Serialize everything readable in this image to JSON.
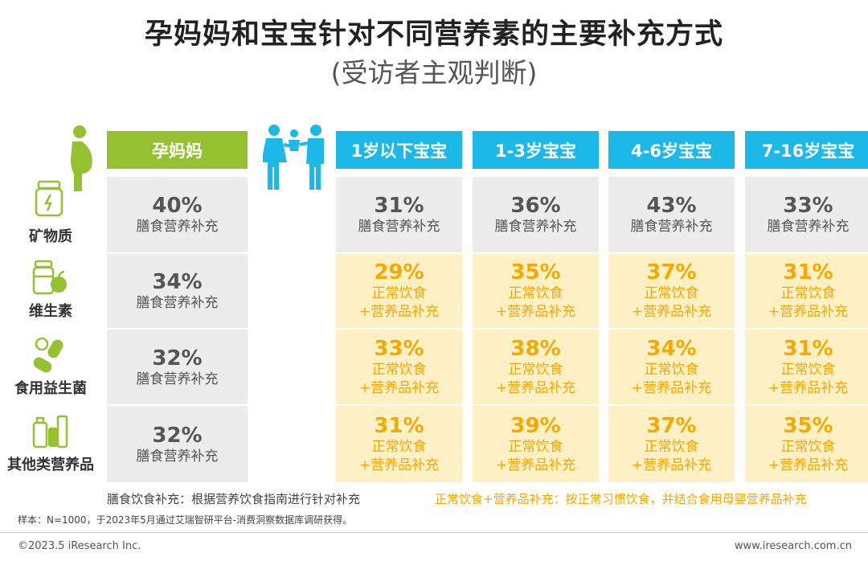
{
  "title": "孕妈妈和宝宝针对不同营养素的主要补充方式",
  "subtitle": "(受访者主观判断)",
  "chart_data": {
    "type": "table",
    "columns": [
      "孕妈妈",
      "1岁以下宝宝",
      "1-3岁宝宝",
      "4-6岁宝宝",
      "7-16岁宝宝"
    ],
    "rows": [
      {
        "label": "矿物质",
        "icon": "supplement-jar-icon",
        "cells": [
          {
            "value": "40%",
            "method": "膳食营养补充"
          },
          {
            "value": "31%",
            "method": "膳食营养补充"
          },
          {
            "value": "36%",
            "method": "膳食营养补充"
          },
          {
            "value": "43%",
            "method": "膳食营养补充"
          },
          {
            "value": "33%",
            "method": "膳食营养补充"
          }
        ]
      },
      {
        "label": "维生素",
        "icon": "vitamin-fruit-icon",
        "cells": [
          {
            "value": "34%",
            "method": "膳食营养补充"
          },
          {
            "value": "29%",
            "method": "正常饮食",
            "method2": "+营养品补充"
          },
          {
            "value": "35%",
            "method": "正常饮食",
            "method2": "+营养品补充"
          },
          {
            "value": "37%",
            "method": "正常饮食",
            "method2": "+营养品补充"
          },
          {
            "value": "31%",
            "method": "正常饮食",
            "method2": "+营养品补充"
          }
        ]
      },
      {
        "label": "食用益生菌",
        "icon": "probiotic-capsule-icon",
        "cells": [
          {
            "value": "32%",
            "method": "膳食营养补充"
          },
          {
            "value": "33%",
            "method": "正常饮食",
            "method2": "+营养品补充"
          },
          {
            "value": "38%",
            "method": "正常饮食",
            "method2": "+营养品补充"
          },
          {
            "value": "34%",
            "method": "正常饮食",
            "method2": "+营养品补充"
          },
          {
            "value": "31%",
            "method": "正常饮食",
            "method2": "+营养品补充"
          }
        ]
      },
      {
        "label": "其他类营养品",
        "icon": "nutrition-products-icon",
        "cells": [
          {
            "value": "32%",
            "method": "膳食营养补充"
          },
          {
            "value": "31%",
            "method": "正常饮食",
            "method2": "+营养品补充"
          },
          {
            "value": "39%",
            "method": "正常饮食",
            "method2": "+营养品补充"
          },
          {
            "value": "37%",
            "method": "正常饮食",
            "method2": "+营养品补充"
          },
          {
            "value": "35%",
            "method": "正常饮食",
            "method2": "+营养品补充"
          }
        ]
      }
    ]
  },
  "legend": {
    "gray": "膳食饮食补充：根据营养饮食指南进行针对补充",
    "orange": "正常饮食+营养品补充：按正常习惯饮食，并结合食用母婴营养品补充"
  },
  "note": "样本：N=1000，于2023年5月通过艾瑞智研平台-消费洞察数据库调研获得。",
  "footer": {
    "left": "©2023.5 iResearch Inc.",
    "right": "www.iresearch.com.cn"
  },
  "colors": {
    "green": "#93c132",
    "blue": "#1cb8e8",
    "gray_cell": "#ececec",
    "yellow_cell": "#fdf0c4",
    "orange_text": "#f5a800"
  }
}
